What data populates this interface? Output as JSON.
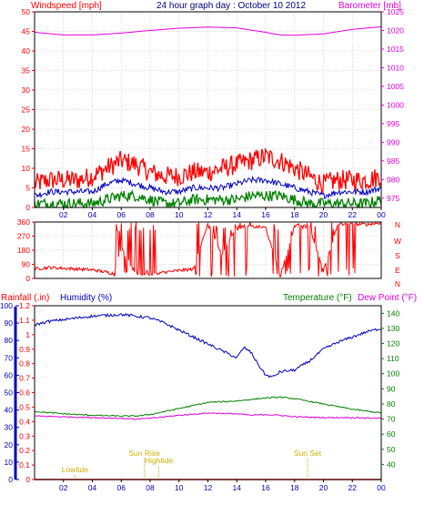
{
  "colors": {
    "wind_max": "#ff0000",
    "wind_avg": "#0000c0",
    "wind_min": "#008000",
    "barometer": "#e000e0",
    "direction": "#ff0000",
    "rain": "#ff0000",
    "humidity": "#0000c0",
    "temperature": "#008000",
    "dewpoint": "#e000e0",
    "tide": "#d0b000",
    "frame": "#000000",
    "grid": "#b0b0b0"
  },
  "header": {
    "windspeed_label": "Windspeed [mph]",
    "title": "24 hour graph day : October 10 2012",
    "barometer_label": "Barometer [mb]"
  },
  "lower_header": {
    "rainfall_label": "Rainfall (.in)",
    "humidity_label": "Humidity (%)",
    "temperature_label": "Temperature (°F)",
    "dewpoint_label": "Dew Point (°F)"
  },
  "chart_data": [
    {
      "type": "line",
      "id": "wind_pressure",
      "title": "24 hour graph day : October 10 2012",
      "x_hours": [
        0,
        24
      ],
      "x_tick_labels": [
        "02",
        "04",
        "06",
        "08",
        "10",
        "12",
        "14",
        "16",
        "18",
        "20",
        "22",
        "00"
      ],
      "y_left_label": "Windspeed [mph]",
      "y_left_range": [
        0,
        50
      ],
      "y_left_ticks": [
        "0",
        "5",
        "10",
        "15",
        "20",
        "25",
        "30",
        "35",
        "40",
        "45",
        "50"
      ],
      "y_right_label": "Barometer [mb]",
      "y_right_range": [
        972.5,
        1025
      ],
      "y_right_ticks": [
        "975",
        "980",
        "985",
        "990",
        "995",
        "1000",
        "1005",
        "1010",
        "1015",
        "1020",
        "1025"
      ],
      "grid": true,
      "series": [
        {
          "key": "wind_max",
          "x": [
            0,
            1,
            2,
            3,
            4,
            5,
            6,
            7,
            8,
            9,
            10,
            11,
            12,
            13,
            14,
            15,
            16,
            17,
            18,
            19,
            20,
            21,
            22,
            23,
            24
          ],
          "values": [
            6,
            7,
            7,
            7,
            8,
            10,
            12,
            11,
            9,
            8,
            8,
            9,
            9,
            10,
            11,
            12,
            13,
            12,
            10,
            8,
            6,
            7,
            7,
            7,
            8
          ]
        },
        {
          "key": "wind_avg",
          "x": [
            0,
            1,
            2,
            3,
            4,
            5,
            6,
            7,
            8,
            9,
            10,
            11,
            12,
            13,
            14,
            15,
            16,
            17,
            18,
            19,
            20,
            21,
            22,
            23,
            24
          ],
          "values": [
            3,
            4,
            4,
            4,
            4,
            6,
            7,
            6,
            5,
            4,
            4,
            5,
            5,
            5,
            6,
            7,
            7,
            6,
            5,
            4,
            3,
            4,
            4,
            4,
            5
          ]
        },
        {
          "key": "wind_min",
          "x": [
            0,
            1,
            2,
            3,
            4,
            5,
            6,
            7,
            8,
            9,
            10,
            11,
            12,
            13,
            14,
            15,
            16,
            17,
            18,
            19,
            20,
            21,
            22,
            23,
            24
          ],
          "values": [
            1,
            1,
            1,
            1,
            1,
            2,
            3,
            3,
            2,
            1,
            1,
            2,
            2,
            2,
            2,
            3,
            3,
            3,
            2,
            1,
            1,
            1,
            1,
            1,
            2
          ]
        },
        {
          "key": "barometer",
          "axis": "right",
          "x": [
            0,
            2,
            4,
            6,
            8,
            10,
            12,
            14,
            16,
            17,
            18,
            20,
            22,
            24
          ],
          "values": [
            1019.5,
            1018.8,
            1018.8,
            1019.3,
            1020.0,
            1020.6,
            1020.9,
            1020.7,
            1019.5,
            1018.8,
            1018.7,
            1019.1,
            1020.3,
            1021.0
          ]
        }
      ]
    },
    {
      "type": "line",
      "id": "wind_direction",
      "x_hours": [
        0,
        24
      ],
      "y_left_ticks": [
        "0",
        "90",
        "180",
        "270",
        "360"
      ],
      "y_left_range": [
        0,
        360
      ],
      "y_right_ticks": [
        "N",
        "W",
        "S",
        "E",
        "N"
      ],
      "series": [
        {
          "key": "direction",
          "x": [
            0,
            1,
            2,
            3,
            4,
            5,
            5.5,
            6,
            7,
            8,
            9,
            10,
            11,
            12,
            13,
            14,
            15,
            16,
            17,
            18,
            19,
            20,
            21,
            22,
            23,
            24
          ],
          "values": [
            60,
            70,
            65,
            60,
            55,
            40,
            30,
            200,
            20,
            30,
            40,
            50,
            60,
            350,
            150,
            340,
            330,
            325,
            10,
            335,
            340,
            50,
            345,
            350,
            345,
            355
          ]
        }
      ]
    },
    {
      "type": "line",
      "id": "rain_humidity_temperature",
      "x_hours": [
        0,
        24
      ],
      "x_tick_labels": [
        "02",
        "04",
        "06",
        "08",
        "10",
        "12",
        "14",
        "16",
        "18",
        "20",
        "22",
        "00"
      ],
      "y_left_rain_label": "Rainfall (.in)",
      "y_left_rain_ticks": [
        "0",
        "0.1",
        "0.2",
        "0.3",
        "0.4",
        "0.5",
        "0.6",
        "0.7",
        "0.8",
        "0.9",
        "1",
        "1.1",
        "1.2"
      ],
      "y_left_rain_range": [
        0,
        1.2
      ],
      "y_left_humidity_label": "Humidity (%)",
      "y_left_humidity_ticks": [
        "0",
        "10",
        "20",
        "30",
        "40",
        "50",
        "60",
        "70",
        "80",
        "90",
        "100"
      ],
      "y_left_humidity_range": [
        0,
        100
      ],
      "y_right_label": "Temperature (°F)",
      "y_right_ticks": [
        "40",
        "50",
        "60",
        "70",
        "80",
        "90",
        "100",
        "110",
        "120",
        "130",
        "140"
      ],
      "y_right_range": [
        30,
        145
      ],
      "grid": false,
      "series": [
        {
          "key": "rain",
          "x": [
            0,
            24
          ],
          "values": [
            0,
            0
          ]
        },
        {
          "key": "humidity",
          "x": [
            0,
            1,
            2,
            3,
            4,
            5,
            6,
            7,
            8,
            9,
            10,
            11,
            12,
            13,
            13.5,
            14,
            14.5,
            15,
            15.5,
            16,
            16.5,
            17,
            18,
            19,
            20,
            21,
            22,
            23,
            24
          ],
          "values": [
            89,
            91,
            92,
            93,
            94,
            94.5,
            95,
            94,
            93,
            90,
            86,
            82,
            78,
            74,
            72,
            70,
            76,
            73,
            66,
            60,
            59,
            62,
            63,
            68,
            75,
            79,
            82,
            85,
            87
          ]
        },
        {
          "key": "temperature",
          "axis": "right",
          "x": [
            0,
            2,
            4,
            6,
            7,
            8,
            10,
            12,
            14,
            16,
            17,
            18,
            20,
            22,
            24
          ],
          "values": [
            75,
            73.5,
            72.5,
            72,
            72,
            73,
            77,
            81,
            82,
            84,
            84.5,
            83.5,
            80,
            76.5,
            74
          ]
        },
        {
          "key": "dewpoint",
          "axis": "right",
          "x": [
            0,
            2,
            4,
            6,
            7,
            8,
            10,
            12,
            14,
            15,
            16,
            17,
            18,
            20,
            22,
            24
          ],
          "values": [
            72,
            71.5,
            71,
            70.5,
            70,
            70.5,
            72.5,
            74,
            73.5,
            72.5,
            73,
            72.5,
            71.5,
            71,
            71,
            70.5
          ]
        }
      ],
      "annotations": [
        {
          "label": "Lowtide",
          "hour": 2.8
        },
        {
          "label": "Sun Rise",
          "hour": 7.6
        },
        {
          "label": "Hightide",
          "hour": 8.6
        },
        {
          "label": "Sun Set",
          "hour": 18.9
        }
      ]
    }
  ]
}
